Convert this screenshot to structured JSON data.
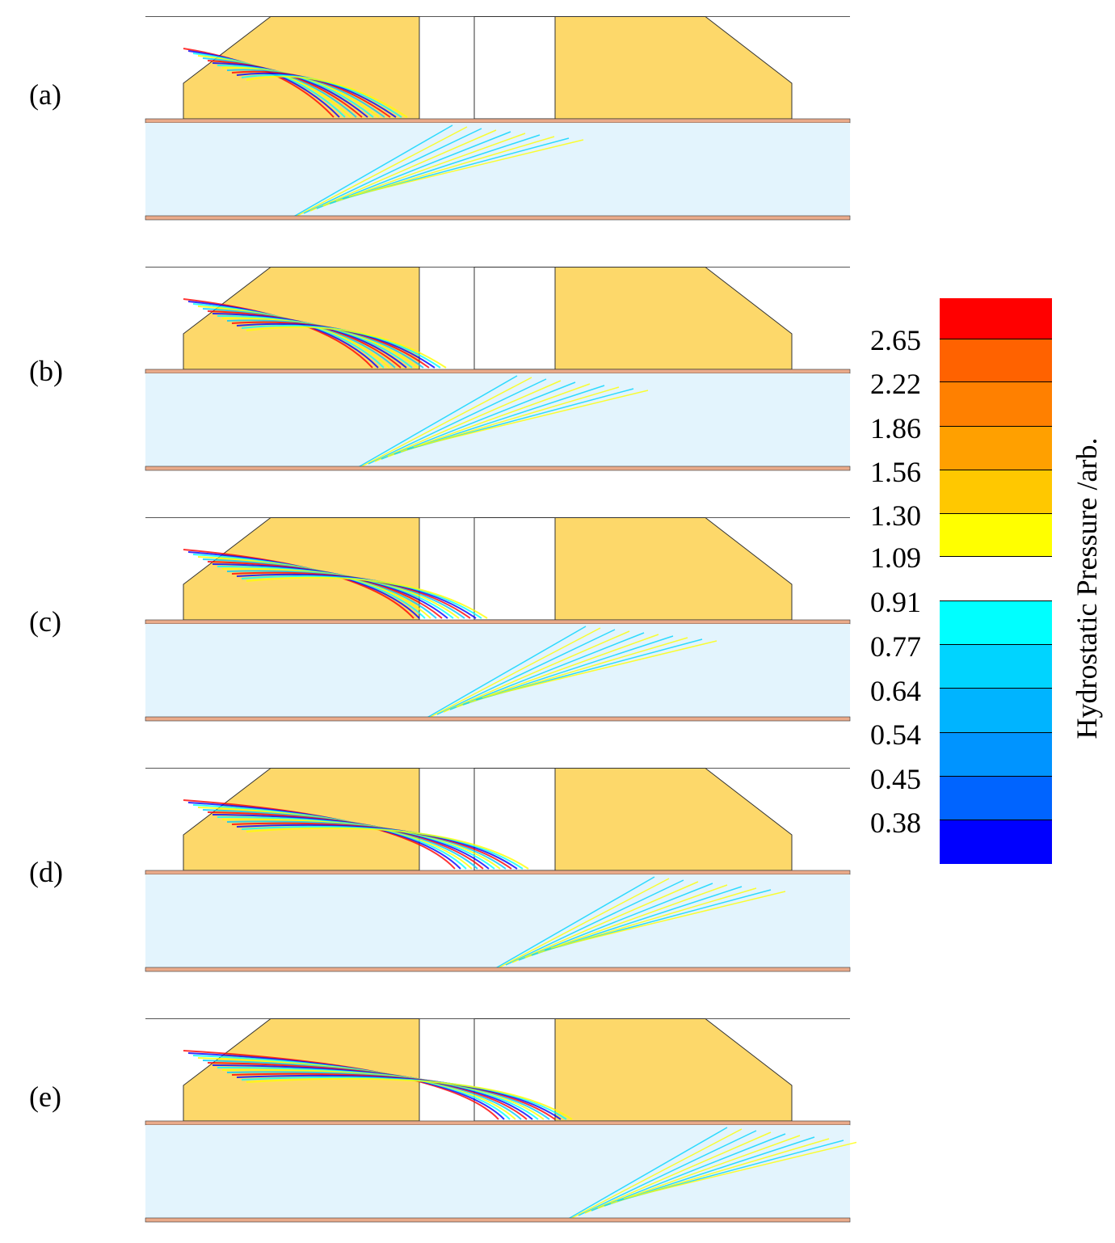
{
  "panels": [
    {
      "label": "(a)",
      "wave_front": 0.22
    },
    {
      "label": "(b)",
      "wave_front": 0.38
    },
    {
      "label": "(c)",
      "wave_front": 0.55
    },
    {
      "label": "(d)",
      "wave_front": 0.72
    },
    {
      "label": "(e)",
      "wave_front": 0.9
    }
  ],
  "colorbar": {
    "title": "Hydrostatic Pressure /arb.",
    "upper_ticks": [
      "2.65",
      "2.22",
      "1.86",
      "1.56",
      "1.30",
      "1.09"
    ],
    "lower_ticks": [
      "0.91",
      "0.77",
      "0.64",
      "0.54",
      "0.45",
      "0.38"
    ],
    "upper_colors": [
      "#FF0000",
      "#FF6200",
      "#FF8000",
      "#FFA000",
      "#FFC800",
      "#FFFF00"
    ],
    "lower_colors": [
      "#00FFFF",
      "#00D4FF",
      "#00B4FF",
      "#0094FF",
      "#0064FF",
      "#0000FF"
    ]
  },
  "colors": {
    "block_fill": "#FDD86A",
    "substrate_fill": "#E3F4FD",
    "strip_fill": "#E9AA8A"
  }
}
